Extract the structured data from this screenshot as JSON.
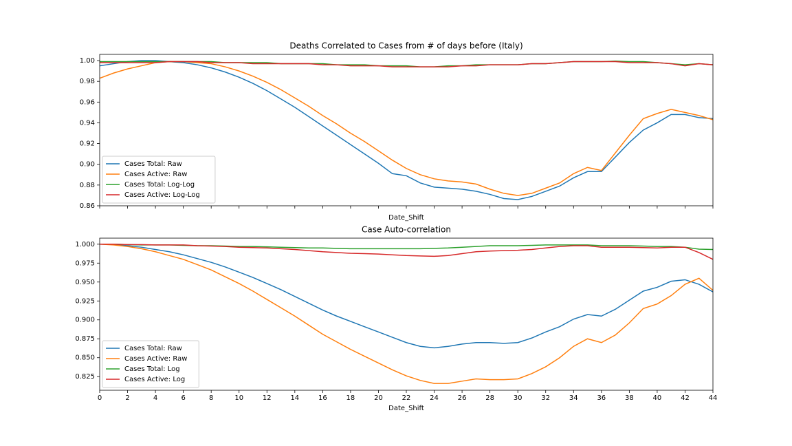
{
  "chart_data": [
    {
      "type": "line",
      "title": "Deaths Correlated to Cases from # of days before (Italy)",
      "xlabel": "Date_Shift",
      "x": [
        0,
        1,
        2,
        3,
        4,
        5,
        6,
        7,
        8,
        9,
        10,
        11,
        12,
        13,
        14,
        15,
        16,
        17,
        18,
        19,
        20,
        21,
        22,
        23,
        24,
        25,
        26,
        27,
        28,
        29,
        30,
        31,
        32,
        33,
        34,
        35,
        36,
        37,
        38,
        39,
        40,
        41,
        42,
        43,
        44
      ],
      "xlim": [
        0,
        44
      ],
      "xticks": [
        0,
        2,
        4,
        6,
        8,
        10,
        12,
        14,
        16,
        18,
        20,
        22,
        24,
        26,
        28,
        30,
        32,
        34,
        36,
        38,
        40,
        42,
        44
      ],
      "xtick_labels": false,
      "ylim": [
        0.86,
        1.006
      ],
      "yticks": [
        0.86,
        0.88,
        {
          "value": 0.9,
          "label": "0.90"
        },
        0.92,
        0.94,
        0.96,
        0.98,
        {
          "value": 1,
          "label": "1.00"
        }
      ],
      "legend": "lower left",
      "series": [
        {
          "name": "Cases Total: Raw",
          "color": "#1f77b4",
          "values": [
            0.995,
            0.997,
            0.999,
            1.0,
            1.0,
            0.999,
            0.998,
            0.996,
            0.993,
            0.989,
            0.984,
            0.978,
            0.971,
            0.963,
            0.955,
            0.946,
            0.937,
            0.928,
            0.919,
            0.91,
            0.901,
            0.891,
            0.889,
            0.882,
            0.878,
            0.877,
            0.876,
            0.874,
            0.871,
            0.867,
            0.866,
            0.869,
            0.874,
            0.879,
            0.887,
            0.893,
            0.893,
            0.907,
            0.921,
            0.933,
            0.94,
            0.948,
            0.948,
            0.945,
            0.944
          ]
        },
        {
          "name": "Cases Active: Raw",
          "color": "#ff7f0e",
          "values": [
            0.983,
            0.988,
            0.992,
            0.995,
            0.998,
            0.999,
            0.999,
            0.998,
            0.997,
            0.994,
            0.99,
            0.985,
            0.979,
            0.972,
            0.964,
            0.956,
            0.947,
            0.939,
            0.93,
            0.922,
            0.913,
            0.904,
            0.896,
            0.89,
            0.886,
            0.884,
            0.883,
            0.881,
            0.876,
            0.872,
            0.87,
            0.872,
            0.877,
            0.882,
            0.891,
            0.897,
            0.894,
            0.911,
            0.928,
            0.944,
            0.949,
            0.953,
            0.95,
            0.947,
            0.943
          ]
        },
        {
          "name": "Cases Total: Log-Log",
          "color": "#2ca02c",
          "values": [
            0.999,
            0.999,
            0.999,
            0.999,
            0.999,
            0.999,
            0.999,
            0.999,
            0.999,
            0.998,
            0.998,
            0.998,
            0.998,
            0.997,
            0.997,
            0.997,
            0.997,
            0.996,
            0.996,
            0.996,
            0.995,
            0.995,
            0.995,
            0.994,
            0.994,
            0.995,
            0.995,
            0.996,
            0.996,
            0.996,
            0.996,
            0.997,
            0.997,
            0.998,
            0.999,
            0.999,
            0.999,
            0.9995,
            0.999,
            0.999,
            0.998,
            0.997,
            0.996,
            0.997,
            0.996
          ]
        },
        {
          "name": "Cases Active: Log-Log",
          "color": "#d62728",
          "values": [
            0.998,
            0.998,
            0.998,
            0.998,
            0.998,
            0.999,
            0.999,
            0.999,
            0.998,
            0.998,
            0.998,
            0.997,
            0.997,
            0.997,
            0.997,
            0.997,
            0.996,
            0.996,
            0.995,
            0.995,
            0.995,
            0.994,
            0.994,
            0.994,
            0.994,
            0.994,
            0.995,
            0.995,
            0.996,
            0.996,
            0.996,
            0.997,
            0.997,
            0.998,
            0.999,
            0.999,
            0.999,
            0.999,
            0.998,
            0.998,
            0.998,
            0.997,
            0.995,
            0.997,
            0.996
          ]
        }
      ]
    },
    {
      "type": "line",
      "title": "Case Auto-correlation",
      "xlabel": "Date_Shift",
      "x": [
        0,
        1,
        2,
        3,
        4,
        5,
        6,
        7,
        8,
        9,
        10,
        11,
        12,
        13,
        14,
        15,
        16,
        17,
        18,
        19,
        20,
        21,
        22,
        23,
        24,
        25,
        26,
        27,
        28,
        29,
        30,
        31,
        32,
        33,
        34,
        35,
        36,
        37,
        38,
        39,
        40,
        41,
        42,
        43,
        44
      ],
      "xlim": [
        0,
        44
      ],
      "xticks": [
        0,
        2,
        4,
        6,
        8,
        10,
        12,
        14,
        16,
        18,
        20,
        22,
        24,
        26,
        28,
        30,
        32,
        34,
        36,
        38,
        40,
        42,
        44
      ],
      "xtick_labels": true,
      "ylim": [
        0.807,
        1.008
      ],
      "yticks": [
        0.825,
        {
          "value": 0.85,
          "label": "0.850"
        },
        0.875,
        {
          "value": 0.9,
          "label": "0.900"
        },
        0.925,
        {
          "value": 0.95,
          "label": "0.950"
        },
        0.975,
        {
          "value": 1,
          "label": "1.000"
        }
      ],
      "legend": "lower left",
      "series": [
        {
          "name": "Cases Total: Raw",
          "color": "#1f77b4",
          "values": [
            1.0,
            0.9995,
            0.998,
            0.996,
            0.993,
            0.99,
            0.986,
            0.981,
            0.976,
            0.97,
            0.963,
            0.956,
            0.948,
            0.94,
            0.931,
            0.922,
            0.913,
            0.905,
            0.898,
            0.891,
            0.884,
            0.877,
            0.87,
            0.865,
            0.863,
            0.865,
            0.868,
            0.87,
            0.87,
            0.869,
            0.87,
            0.876,
            0.884,
            0.891,
            0.901,
            0.907,
            0.905,
            0.914,
            0.926,
            0.938,
            0.943,
            0.951,
            0.953,
            0.947,
            0.937
          ]
        },
        {
          "name": "Cases Active: Raw",
          "color": "#ff7f0e",
          "values": [
            1.0,
            0.999,
            0.997,
            0.994,
            0.99,
            0.985,
            0.98,
            0.973,
            0.966,
            0.957,
            0.948,
            0.938,
            0.927,
            0.916,
            0.905,
            0.893,
            0.881,
            0.871,
            0.861,
            0.852,
            0.843,
            0.834,
            0.826,
            0.82,
            0.816,
            0.816,
            0.819,
            0.822,
            0.821,
            0.821,
            0.822,
            0.829,
            0.838,
            0.85,
            0.865,
            0.875,
            0.87,
            0.88,
            0.896,
            0.915,
            0.921,
            0.932,
            0.947,
            0.955,
            0.939
          ]
        },
        {
          "name": "Cases Total: Log",
          "color": "#2ca02c",
          "values": [
            1.0,
            1.0,
            0.9995,
            0.999,
            0.999,
            0.999,
            0.9985,
            0.998,
            0.998,
            0.9975,
            0.997,
            0.997,
            0.9965,
            0.996,
            0.9955,
            0.995,
            0.995,
            0.9945,
            0.994,
            0.994,
            0.994,
            0.994,
            0.994,
            0.994,
            0.9945,
            0.995,
            0.996,
            0.997,
            0.998,
            0.998,
            0.998,
            0.9985,
            0.999,
            0.999,
            0.999,
            0.999,
            0.998,
            0.998,
            0.998,
            0.9975,
            0.997,
            0.997,
            0.996,
            0.9935,
            0.993
          ]
        },
        {
          "name": "Cases Active: Log",
          "color": "#d62728",
          "values": [
            1.0,
            1.0,
            0.9995,
            0.9995,
            0.999,
            0.999,
            0.999,
            0.998,
            0.9975,
            0.997,
            0.996,
            0.9955,
            0.995,
            0.994,
            0.993,
            0.9915,
            0.99,
            0.989,
            0.988,
            0.9875,
            0.987,
            0.986,
            0.985,
            0.9845,
            0.984,
            0.985,
            0.9875,
            0.99,
            0.991,
            0.9915,
            0.992,
            0.993,
            0.995,
            0.997,
            0.998,
            0.998,
            0.996,
            0.996,
            0.996,
            0.9955,
            0.995,
            0.996,
            0.996,
            0.989,
            0.98
          ]
        }
      ]
    }
  ]
}
